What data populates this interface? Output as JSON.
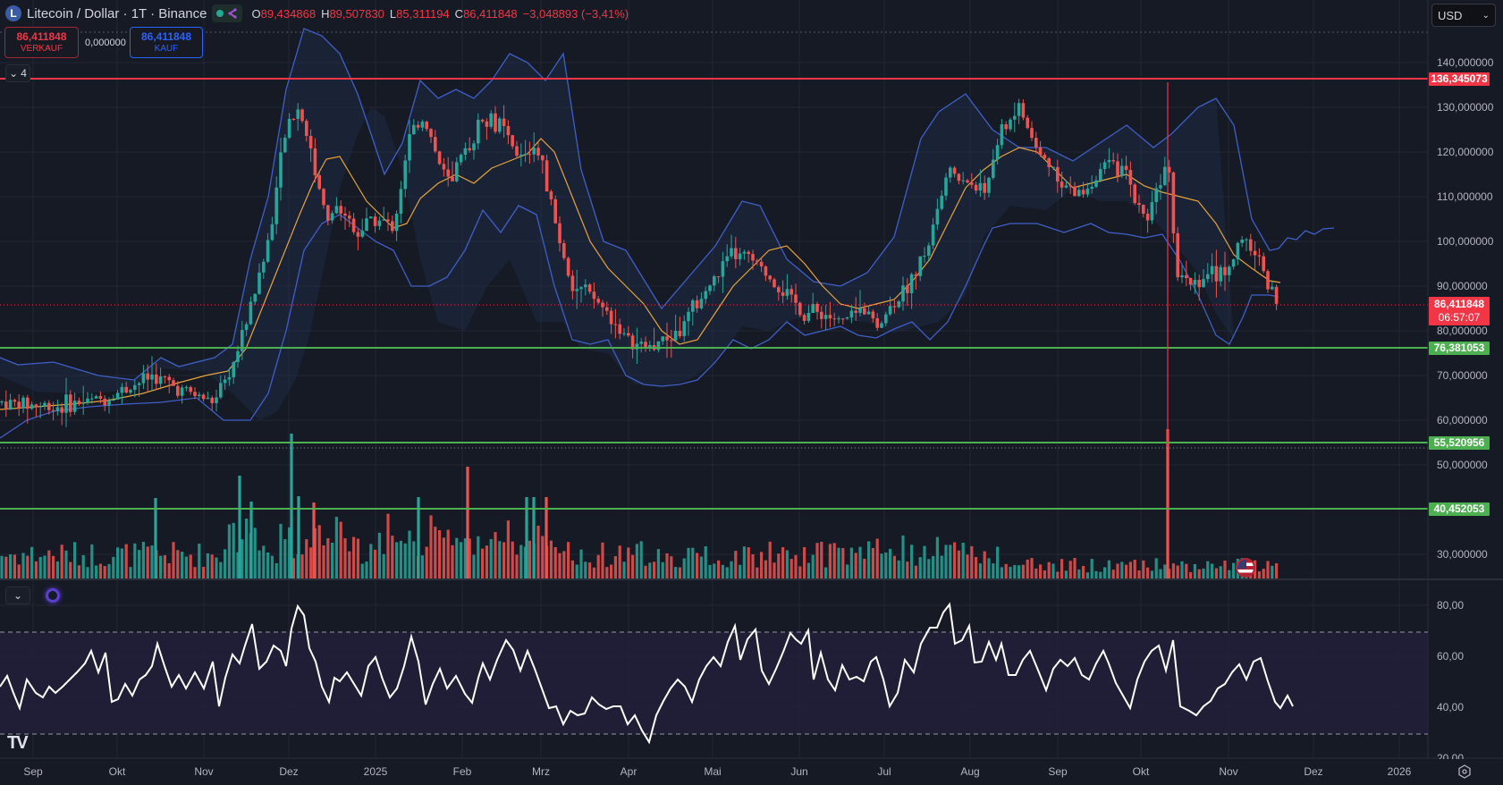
{
  "header": {
    "symbol_icon": "L",
    "title": "Litecoin / Dollar · 1T · Binance",
    "ohlc": {
      "open_label": "O",
      "open": "89,434868",
      "high_label": "H",
      "high": "89,507830",
      "low_label": "L",
      "low": "85,311194",
      "close_label": "C",
      "close": "86,411848"
    },
    "change": "−3,048893 (−3,41%)"
  },
  "trade": {
    "sell_price": "86,411848",
    "sell_label": "VERKAUF",
    "spread": "0,000000",
    "buy_price": "86,411848",
    "buy_label": "KAUF"
  },
  "indicators_toggle": {
    "count": "4"
  },
  "currency": {
    "value": "USD"
  },
  "price_axis": {
    "labels": [
      "140,000000",
      "130,000000",
      "120,000000",
      "110,000000",
      "100,000000",
      "90,000000",
      "80,000000",
      "70,000000",
      "60,000000",
      "50,000000",
      "30,000000"
    ],
    "tags": {
      "resistance": "136,345073",
      "current_price": "86,411848",
      "countdown": "06:57:07",
      "support_1": "76,381053",
      "support_2": "55,520956",
      "support_3": "40,452053"
    }
  },
  "rsi_axis": {
    "labels": [
      "80,00",
      "60,00",
      "40,00",
      "20,00"
    ]
  },
  "time_axis": {
    "labels": [
      "Sep",
      "Okt",
      "Nov",
      "Dez",
      "2025",
      "Feb",
      "Mrz",
      "Apr",
      "Mai",
      "Jun",
      "Jul",
      "Aug",
      "Sep",
      "Okt",
      "Nov",
      "Dez",
      "2026"
    ]
  },
  "colors": {
    "up": "#26a69a",
    "down": "#ef5350",
    "bollinger": "#3f5fc9",
    "sma": "#e8a33a",
    "resistance_line": "#f23645",
    "support_line": "#4caf50",
    "rsi_line": "#ffffff",
    "rsi_band": "#2a2645"
  },
  "logo": "TV",
  "chart_data": {
    "type": "candlestick",
    "title": "Litecoin / Dollar · 1T · Binance",
    "interval": "1D",
    "xlabel": "",
    "ylabel": "USD",
    "ylim": [
      20,
      150
    ],
    "x_ticks": [
      "Sep",
      "Okt",
      "Nov",
      "Dez",
      "2025",
      "Feb",
      "Mrz",
      "Apr",
      "Mai",
      "Jun",
      "Jul",
      "Aug",
      "Sep",
      "Okt",
      "Nov",
      "Dez",
      "2026"
    ],
    "last": {
      "open": 89.434868,
      "high": 89.50783,
      "low": 85.311194,
      "close": 86.411848,
      "change": -3.048893,
      "change_pct": -3.41
    },
    "horizontal_lines": [
      {
        "name": "resistance",
        "value": 136.345073,
        "color": "#f23645"
      },
      {
        "name": "support",
        "value": 76.381053,
        "color": "#4caf50"
      },
      {
        "name": "support",
        "value": 55.520956,
        "color": "#4caf50"
      },
      {
        "name": "support",
        "value": 40.452053,
        "color": "#4caf50"
      }
    ],
    "close_series_approx": {
      "months": [
        "Sep 2024",
        "Okt",
        "Nov",
        "Dez",
        "Jan 2025",
        "Feb",
        "Mrz",
        "Apr",
        "Mai",
        "Jun",
        "Jul",
        "Aug",
        "Sep",
        "Okt",
        "Nov 2025"
      ],
      "values": [
        64,
        66,
        72,
        130,
        112,
        118,
        92,
        80,
        96,
        85,
        90,
        118,
        112,
        110,
        86
      ]
    },
    "indicators": {
      "bollinger_bands": {
        "color": "#3f5fc9"
      },
      "sma": {
        "color": "#e8a33a"
      },
      "volume": {
        "up": "#26a69a",
        "down": "#ef5350"
      },
      "rsi": {
        "ylim": [
          20,
          85
        ],
        "bands": [
          30,
          70
        ],
        "values_approx": [
          45,
          42,
          60,
          50,
          65,
          52,
          70,
          58,
          70,
          48,
          65,
          42,
          58,
          46,
          45,
          40,
          35,
          43,
          72,
          44,
          60,
          47,
          40,
          60,
          80,
          58,
          55,
          40,
          42,
          35,
          38,
          41,
          48,
          41
        ]
      }
    }
  }
}
